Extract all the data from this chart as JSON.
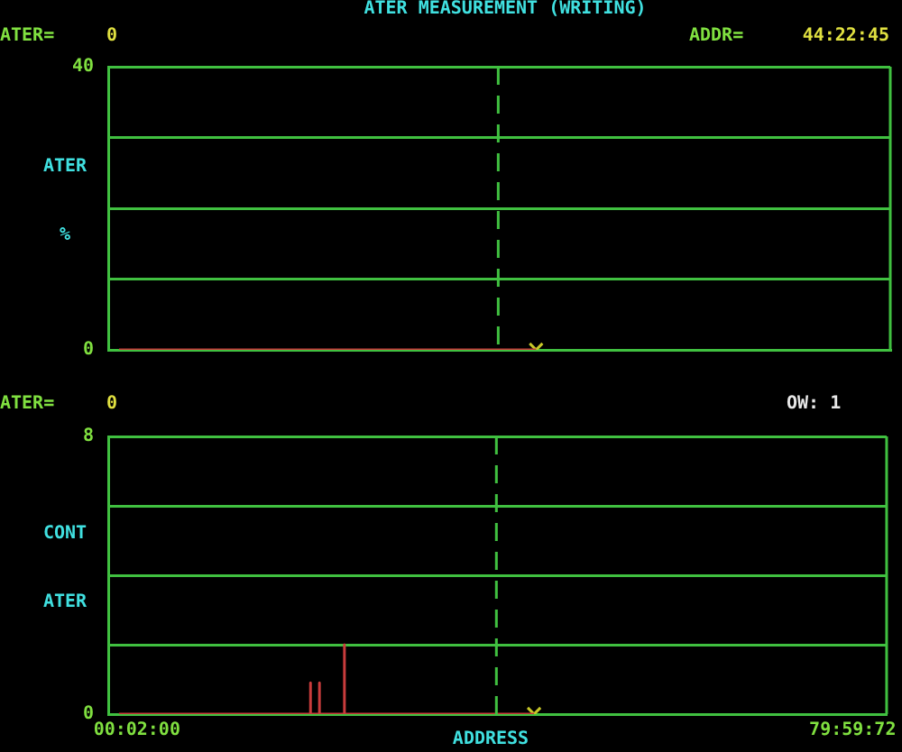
{
  "chart_data": [
    {
      "type": "line",
      "title": "ATER MEASUREMENT (WRITING)",
      "ylabel": "ATER %",
      "annotations": [
        "ATER=",
        "0",
        "ADDR=",
        "44:22:45"
      ],
      "series": [
        {
          "type": "line",
          "color": "#c83c3c",
          "x": [
            -1.97,
            44.41
          ],
          "values": [
            0,
            0
          ]
        },
        {
          "type": "scatter",
          "color": "#c8c828",
          "marker": "cross",
          "x": [
            44.41
          ],
          "values": [
            0
          ]
        }
      ],
      "xlim": [
        -3.17,
        83.8
      ],
      "tick_labels": "y",
      "ylim": [
        0,
        40
      ],
      "yticks": [
        0,
        {
          "value": 10,
          "label": null
        },
        {
          "value": 20,
          "label": null
        },
        {
          "value": 30,
          "label": null
        },
        40
      ],
      "ref_lines": [
        {
          "axis": "x",
          "value": 40.2,
          "color": "#40c040",
          "line_style": "dashed"
        }
      ],
      "grid": "y"
    },
    {
      "type": "line",
      "ylabel": "CONT ATER",
      "xlabel": "ADDRESS",
      "annotations": [
        "ATER=",
        "0",
        "OW: 1"
      ],
      "series": [
        {
          "type": "line",
          "color": "#c83c3c",
          "x": [
            -1.97,
            19.43,
            19.43,
            19.43,
            20.43,
            20.43,
            20.43,
            23.22,
            23.22,
            23.22,
            44.41
          ],
          "values": [
            0,
            0,
            0.9,
            0,
            0,
            0.9,
            0,
            0,
            2,
            0,
            0
          ]
        },
        {
          "type": "scatter",
          "color": "#c8c828",
          "marker": "cross",
          "x": [
            44.41
          ],
          "values": [
            0
          ]
        }
      ],
      "xlim": [
        -3.17,
        83.8
      ],
      "xticks": [
        {
          "value": 0.0333,
          "label": "00:02:00"
        },
        {
          "value": 80.0033,
          "label": "79:59:72"
        }
      ],
      "ylim": [
        0,
        8
      ],
      "yticks": [
        0,
        {
          "value": 2,
          "label": null
        },
        {
          "value": 4,
          "label": null
        },
        {
          "value": 6,
          "label": null
        },
        8
      ],
      "ref_lines": [
        {
          "axis": "x",
          "value": 40.2,
          "color": "#40c040",
          "line_style": "dashed"
        }
      ],
      "grid": "y"
    }
  ]
}
